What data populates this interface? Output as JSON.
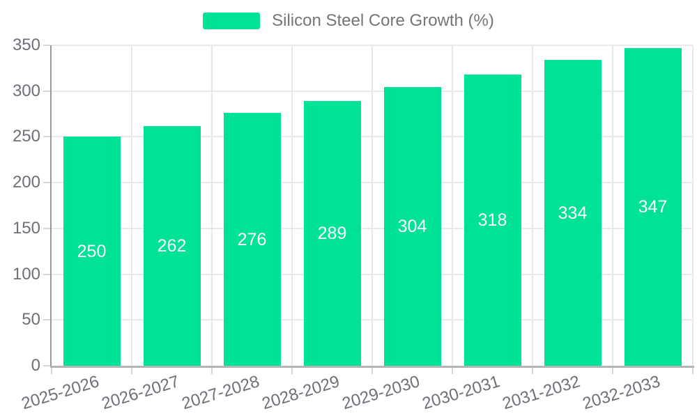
{
  "legend": {
    "label": "Silicon Steel Core Growth (%)"
  },
  "colors": {
    "bar": "#00E294",
    "bar_label": "#FFFFFF",
    "axis_label": "#6E7079",
    "legend_text": "#757575",
    "gridline": "#E9E9E9",
    "y_axis_line": "#979797",
    "x_axis_line": "#B4B4B4",
    "tick": "#D6D6D6",
    "background": "#FFFFFF"
  },
  "chart_data": {
    "type": "bar",
    "categories": [
      "2025-2026",
      "2026-2027",
      "2027-2028",
      "2028-2029",
      "2029-2030",
      "2030-2031",
      "2031-2032",
      "2032-2033"
    ],
    "series": [
      {
        "name": "Silicon Steel Core Growth (%)",
        "values": [
          250,
          262,
          276,
          289,
          304,
          318,
          334,
          347
        ]
      }
    ],
    "values": [
      250,
      262,
      276,
      289,
      304,
      318,
      334,
      347
    ],
    "bar_value_labels": [
      250,
      262,
      276,
      289,
      304,
      318,
      334,
      347
    ],
    "title": "",
    "xlabel": "",
    "ylabel": "",
    "ylim": [
      0,
      350
    ],
    "ytick_step": 50,
    "y_ticks": [
      0,
      50,
      100,
      150,
      200,
      250,
      300,
      350
    ],
    "grid": "horizontal gridlines at each 50 step, vertical gridlines at category boundaries",
    "legend_position": "top-center",
    "value_label_position": "inside-center",
    "x_label_rotation_deg": -17
  }
}
